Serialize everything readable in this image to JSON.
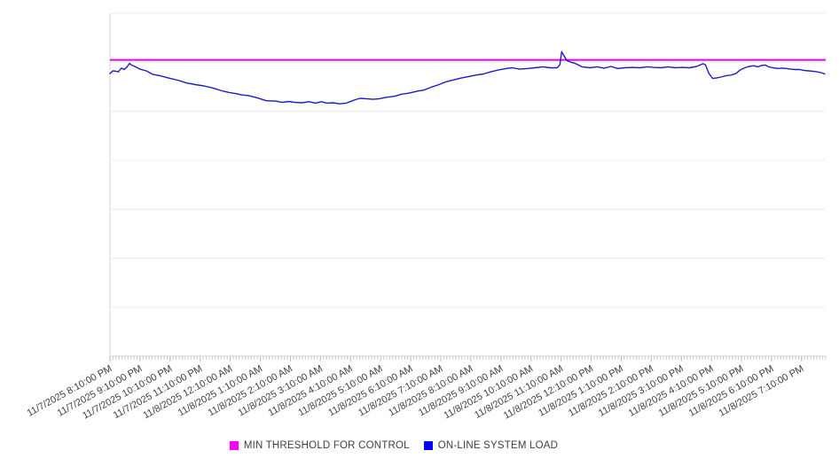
{
  "legend": {
    "entries": [
      {
        "label": "MIN THRESHOLD FOR CONTROL",
        "color": "#ff00ff"
      },
      {
        "label": "ON-LINE SYSTEM LOAD",
        "color": "#0000ff"
      }
    ]
  },
  "chart_data": {
    "type": "line",
    "title": "",
    "xlabel": "",
    "ylabel": "",
    "x_axis": {
      "hours_span": 23.8,
      "minor_tick_interval_hours": 0.1,
      "label_rotation_deg": -29,
      "tick_labels": [
        "11/7/2025 8:10:00 PM",
        "11/7/2025 9:10:00 PM",
        "11/7/2025 10:10:00 PM",
        "11/7/2025 11:10:00 PM",
        "11/8/2025 12:10:00 AM",
        "11/8/2025 1:10:00 AM",
        "11/8/2025 2:10:00 AM",
        "11/8/2025 3:10:00 AM",
        "11/8/2025 4:10:00 AM",
        "11/8/2025 5:10:00 AM",
        "11/8/2025 6:10:00 AM",
        "11/8/2025 7:10:00 AM",
        "11/8/2025 8:10:00 AM",
        "11/8/2025 9:10:00 AM",
        "11/8/2025 10:10:00 AM",
        "11/8/2025 11:10:00 AM",
        "11/8/2025 12:10:00 PM",
        "11/8/2025 1:10:00 PM",
        "11/8/2025 2:10:00 PM",
        "11/8/2025 3:10:00 PM",
        "11/8/2025 4:10:00 PM",
        "11/8/2025 5:10:00 PM",
        "11/8/2025 6:10:00 PM",
        "11/8/2025 7:10:00 PM"
      ]
    },
    "y_axis": {
      "labels_visible": false,
      "gridline_divisions": 7,
      "note": "no y-axis tick labels shown; values are percent of plot height",
      "ylim": [
        0,
        100
      ],
      "grid": true
    },
    "legend_position": "bottom-center",
    "series": [
      {
        "name": "MIN THRESHOLD FOR CONTROL",
        "kind": "threshold",
        "color": "#e800e8",
        "value": 86.4
      },
      {
        "name": "ON-LINE SYSTEM LOAD",
        "kind": "line",
        "color": "#1b1bcb",
        "points": [
          [
            0,
            82.4
          ],
          [
            0.09,
            83.2
          ],
          [
            0.21,
            83.1
          ],
          [
            0.27,
            82.9
          ],
          [
            0.38,
            84.0
          ],
          [
            0.47,
            83.6
          ],
          [
            0.56,
            84.3
          ],
          [
            0.65,
            85.4
          ],
          [
            0.71,
            84.9
          ],
          [
            0.83,
            84.5
          ],
          [
            1.0,
            83.7
          ],
          [
            1.21,
            83.2
          ],
          [
            1.42,
            82.2
          ],
          [
            1.66,
            81.8
          ],
          [
            1.95,
            81.1
          ],
          [
            2.25,
            80.5
          ],
          [
            2.54,
            79.7
          ],
          [
            2.84,
            79.2
          ],
          [
            3.13,
            78.8
          ],
          [
            3.43,
            78.2
          ],
          [
            3.72,
            77.4
          ],
          [
            3.96,
            76.9
          ],
          [
            4.17,
            76.6
          ],
          [
            4.37,
            76.2
          ],
          [
            4.61,
            76.0
          ],
          [
            4.91,
            75.3
          ],
          [
            5.2,
            74.5
          ],
          [
            5.5,
            74.4
          ],
          [
            5.73,
            74.0
          ],
          [
            5.94,
            74.3
          ],
          [
            6.15,
            74.0
          ],
          [
            6.38,
            73.9
          ],
          [
            6.62,
            74.2
          ],
          [
            6.83,
            73.8
          ],
          [
            7.03,
            74.2
          ],
          [
            7.21,
            73.8
          ],
          [
            7.42,
            73.9
          ],
          [
            7.63,
            73.6
          ],
          [
            7.86,
            73.8
          ],
          [
            7.98,
            74.2
          ],
          [
            8.16,
            74.8
          ],
          [
            8.31,
            75.2
          ],
          [
            8.51,
            75.1
          ],
          [
            8.75,
            74.9
          ],
          [
            8.96,
            75.1
          ],
          [
            9.19,
            75.5
          ],
          [
            9.46,
            75.8
          ],
          [
            9.7,
            76.4
          ],
          [
            9.93,
            76.7
          ],
          [
            10.23,
            77.3
          ],
          [
            10.43,
            77.6
          ],
          [
            10.67,
            78.4
          ],
          [
            10.94,
            79.2
          ],
          [
            11.17,
            80.0
          ],
          [
            11.44,
            80.6
          ],
          [
            11.68,
            81.1
          ],
          [
            11.91,
            81.5
          ],
          [
            12.18,
            82.0
          ],
          [
            12.42,
            82.3
          ],
          [
            12.65,
            82.9
          ],
          [
            12.92,
            83.5
          ],
          [
            13.18,
            83.9
          ],
          [
            13.39,
            84.1
          ],
          [
            13.63,
            83.7
          ],
          [
            13.89,
            83.9
          ],
          [
            14.13,
            84.1
          ],
          [
            14.4,
            84.4
          ],
          [
            14.63,
            84.1
          ],
          [
            14.87,
            84.1
          ],
          [
            14.96,
            85.0
          ],
          [
            15.02,
            88.8
          ],
          [
            15.1,
            87.6
          ],
          [
            15.19,
            86.2
          ],
          [
            15.34,
            85.7
          ],
          [
            15.49,
            85.3
          ],
          [
            15.7,
            84.4
          ],
          [
            15.96,
            84.1
          ],
          [
            16.2,
            84.4
          ],
          [
            16.43,
            84.0
          ],
          [
            16.67,
            84.5
          ],
          [
            16.88,
            83.9
          ],
          [
            17.12,
            84.1
          ],
          [
            17.38,
            84.2
          ],
          [
            17.62,
            84.1
          ],
          [
            17.86,
            84.4
          ],
          [
            18.09,
            84.2
          ],
          [
            18.33,
            84.1
          ],
          [
            18.56,
            84.4
          ],
          [
            18.8,
            84.1
          ],
          [
            19.04,
            84.2
          ],
          [
            19.27,
            84.1
          ],
          [
            19.51,
            84.5
          ],
          [
            19.72,
            85.3
          ],
          [
            19.8,
            85.0
          ],
          [
            19.92,
            82.4
          ],
          [
            20.04,
            81.0
          ],
          [
            20.16,
            81.1
          ],
          [
            20.31,
            81.4
          ],
          [
            20.49,
            81.8
          ],
          [
            20.66,
            82.0
          ],
          [
            20.81,
            82.4
          ],
          [
            20.96,
            83.5
          ],
          [
            21.11,
            84.1
          ],
          [
            21.25,
            84.5
          ],
          [
            21.4,
            84.7
          ],
          [
            21.55,
            84.4
          ],
          [
            21.67,
            84.8
          ],
          [
            21.79,
            84.9
          ],
          [
            21.9,
            84.4
          ],
          [
            22.05,
            84.1
          ],
          [
            22.2,
            83.9
          ],
          [
            22.35,
            84.0
          ],
          [
            22.5,
            83.9
          ],
          [
            22.64,
            83.7
          ],
          [
            22.79,
            83.6
          ],
          [
            22.94,
            83.6
          ],
          [
            23.09,
            83.3
          ],
          [
            23.24,
            83.2
          ],
          [
            23.38,
            83.1
          ],
          [
            23.53,
            82.9
          ],
          [
            23.65,
            82.7
          ],
          [
            23.77,
            82.3
          ]
        ]
      }
    ],
    "style": {
      "gridline_color": "#ededed",
      "axis_line_color": "#d6d6d6",
      "tick_color": "#c8c8c8",
      "label_color": "#404040"
    }
  }
}
